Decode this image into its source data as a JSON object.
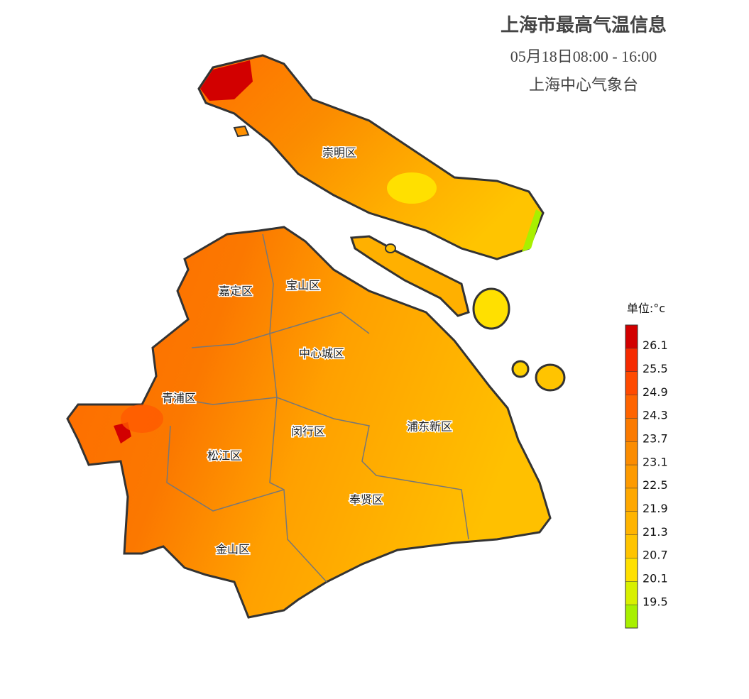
{
  "header": {
    "title": "上海市最高气温信息",
    "period": "05月18日08:00 - 16:00",
    "source": "上海中心气象台"
  },
  "districts": [
    {
      "label": "崇明区"
    },
    {
      "label": "嘉定区"
    },
    {
      "label": "宝山区"
    },
    {
      "label": "中心城区"
    },
    {
      "label": "青浦区"
    },
    {
      "label": "闵行区"
    },
    {
      "label": "浦东新区"
    },
    {
      "label": "松江区"
    },
    {
      "label": "奉贤区"
    },
    {
      "label": "金山区"
    }
  ],
  "legend": {
    "unit": "单位:°c",
    "ticks": [
      26.1,
      25.5,
      24.9,
      24.3,
      23.7,
      23.1,
      22.5,
      21.9,
      21.3,
      20.7,
      20.1,
      19.5
    ],
    "colors": [
      "#d20000",
      "#f52a00",
      "#ff4a00",
      "#ff6400",
      "#fb7a00",
      "#fb8c00",
      "#fd9a00",
      "#ffa800",
      "#ffb400",
      "#ffc400",
      "#ffe000",
      "#d8f000",
      "#a8f000"
    ]
  }
}
